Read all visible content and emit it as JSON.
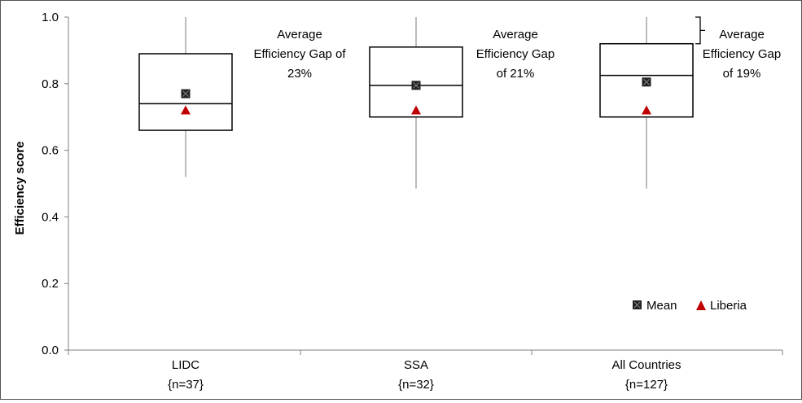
{
  "chart_data": {
    "type": "box",
    "title": "",
    "ylabel": "Efficiency score",
    "xlabel": "",
    "ylim": [
      0.0,
      1.0
    ],
    "yticks": [
      "0.0",
      "0.2",
      "0.4",
      "0.6",
      "0.8",
      "1.0"
    ],
    "categories": [
      {
        "label": "LIDC",
        "sublabel": "{n=37}"
      },
      {
        "label": "SSA",
        "sublabel": "{n=32}"
      },
      {
        "label": "All Countries",
        "sublabel": "{n=127}"
      }
    ],
    "boxes": [
      {
        "whisker_low": 0.52,
        "q1": 0.66,
        "median": 0.74,
        "q3": 0.89,
        "whisker_high": 1.0,
        "mean": 0.77,
        "liberia": 0.72
      },
      {
        "whisker_low": 0.485,
        "q1": 0.7,
        "median": 0.795,
        "q3": 0.91,
        "whisker_high": 1.0,
        "mean": 0.795,
        "liberia": 0.72
      },
      {
        "whisker_low": 0.485,
        "q1": 0.7,
        "median": 0.825,
        "q3": 0.92,
        "whisker_high": 1.0,
        "mean": 0.805,
        "liberia": 0.72
      }
    ],
    "annotations": [
      {
        "lines": [
          "Average",
          "Efficiency Gap of",
          "23%"
        ]
      },
      {
        "lines": [
          "Average",
          "Efficiency Gap",
          "of 21%"
        ]
      },
      {
        "lines": [
          "Average",
          "Efficiency Gap",
          "of 19%"
        ]
      }
    ],
    "legend": {
      "position": "bottom-right",
      "items": [
        {
          "name": "Mean",
          "marker": "square",
          "color": "#222222"
        },
        {
          "name": "Liberia",
          "marker": "triangle",
          "color": "#c00000"
        }
      ]
    },
    "colors": {
      "box_stroke": "#000000",
      "whisker": "#a6a6a6",
      "axis": "#808080",
      "mean": "#222222",
      "liberia": "#c00000"
    },
    "grid": false
  }
}
